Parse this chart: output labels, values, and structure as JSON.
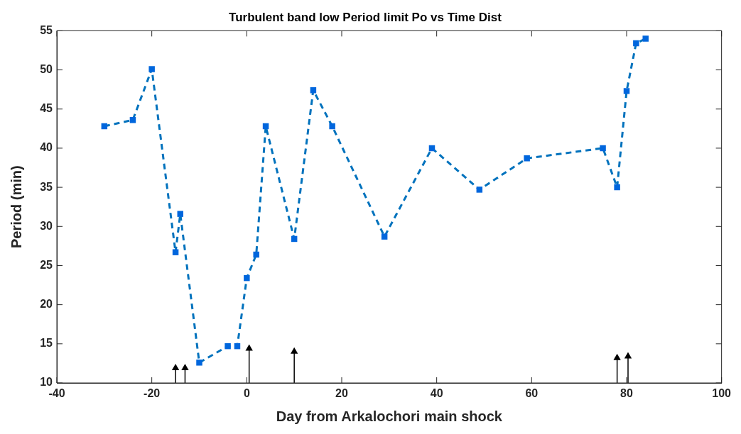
{
  "chart_data": {
    "type": "line",
    "title": "Turbulent band low Period limit Po vs Time Dist",
    "xlabel": "Day from Arkalochori main shock",
    "ylabel": "Period (min)",
    "x": [
      -30,
      -24,
      -20,
      -15,
      -14,
      -10,
      -4,
      -2,
      0,
      2,
      4,
      10,
      14,
      18,
      29,
      39,
      49,
      59,
      75,
      78,
      80,
      82,
      84
    ],
    "series": [
      {
        "color": "#0072bd",
        "values": [
          42.8,
          43.6,
          50.1,
          26.7,
          31.6,
          12.6,
          14.7,
          14.7,
          23.4,
          26.4,
          42.8,
          28.4,
          47.4,
          42.8,
          28.7,
          40.0,
          34.7,
          38.7,
          40.0,
          35.0,
          47.3,
          53.4,
          54.0
        ]
      },
      {
        "type": "lollipop",
        "marker": "triangle",
        "color": "#000000",
        "x": [
          -15,
          -13,
          0.5,
          10,
          78,
          80.3
        ],
        "values": [
          11.9,
          11.9,
          14.4,
          14.0,
          13.2,
          13.4
        ]
      }
    ],
    "marker": "square",
    "line_style": "dashed",
    "legend": false,
    "xlim": [
      -40,
      100
    ],
    "xticks": [
      -40,
      -20,
      0,
      20,
      40,
      60,
      80,
      100
    ],
    "ylim": [
      10,
      55
    ],
    "yticks": [
      10,
      15,
      20,
      25,
      30,
      35,
      40,
      45,
      50,
      55
    ]
  }
}
